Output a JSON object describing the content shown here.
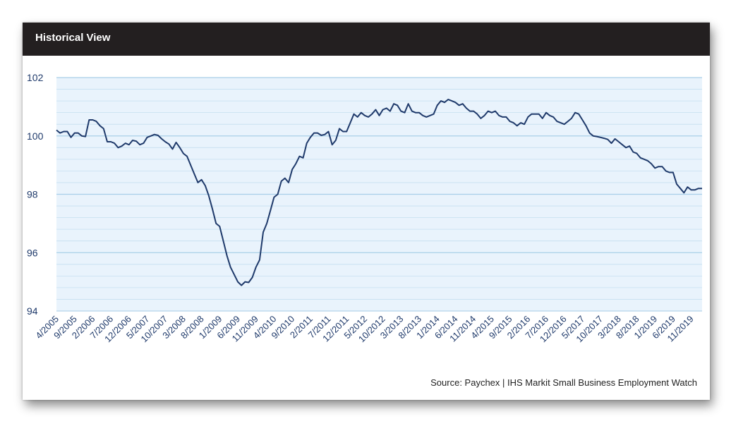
{
  "header": {
    "title": "Historical View"
  },
  "source": "Source: Paychex | IHS Markit Small Business Employment Watch",
  "colors": {
    "header_bg": "#231f20",
    "plot_bg": "#e9f3fc",
    "line": "#1f3a6b",
    "grid": "#c5dff0",
    "axis_text": "#1f3a6b"
  },
  "chart_data": {
    "type": "line",
    "title": "",
    "xlabel": "",
    "ylabel": "",
    "ylim": [
      94,
      102
    ],
    "yticks": [
      94,
      96,
      98,
      100,
      102
    ],
    "grid": true,
    "xtick_labels": [
      "4/2005",
      "9/2005",
      "2/2006",
      "7/2006",
      "12/2006",
      "5/2007",
      "10/2007",
      "3/2008",
      "8/2008",
      "1/2009",
      "6/2009",
      "11/2009",
      "4/2010",
      "9/2010",
      "2/2011",
      "7/2011",
      "12/2011",
      "5/2012",
      "10/2012",
      "3/2013",
      "8/2013",
      "1/2014",
      "6/2014",
      "11/2014",
      "4/2015",
      "9/2015",
      "2/2016",
      "7/2016",
      "12/2016",
      "5/2017",
      "10/2017",
      "3/2018",
      "8/2018",
      "1/2019",
      "6/2019",
      "11/2019"
    ],
    "series": [
      {
        "x_start": "4/2005",
        "x_end": "1/2020",
        "values": [
          100.2,
          100.1,
          100.15,
          100.15,
          99.95,
          100.1,
          100.1,
          100.0,
          99.98,
          100.55,
          100.55,
          100.5,
          100.35,
          100.25,
          99.8,
          99.8,
          99.75,
          99.6,
          99.65,
          99.75,
          99.7,
          99.85,
          99.82,
          99.7,
          99.75,
          99.95,
          100.0,
          100.05,
          100.02,
          99.9,
          99.8,
          99.72,
          99.55,
          99.78,
          99.6,
          99.4,
          99.3,
          99.0,
          98.7,
          98.4,
          98.5,
          98.3,
          97.95,
          97.5,
          97.0,
          96.9,
          96.4,
          95.9,
          95.5,
          95.25,
          95.0,
          94.88,
          95.0,
          94.98,
          95.15,
          95.5,
          95.75,
          96.7,
          97.0,
          97.45,
          97.9,
          98.0,
          98.45,
          98.55,
          98.4,
          98.85,
          99.05,
          99.3,
          99.25,
          99.75,
          99.95,
          100.1,
          100.1,
          100.02,
          100.05,
          100.15,
          99.7,
          99.85,
          100.25,
          100.15,
          100.15,
          100.45,
          100.75,
          100.65,
          100.8,
          100.7,
          100.65,
          100.75,
          100.9,
          100.7,
          100.9,
          100.95,
          100.85,
          101.1,
          101.05,
          100.85,
          100.8,
          101.1,
          100.85,
          100.8,
          100.8,
          100.7,
          100.65,
          100.7,
          100.75,
          101.05,
          101.2,
          101.15,
          101.25,
          101.2,
          101.15,
          101.05,
          101.1,
          100.95,
          100.85,
          100.85,
          100.75,
          100.6,
          100.7,
          100.85,
          100.8,
          100.85,
          100.7,
          100.65,
          100.65,
          100.5,
          100.45,
          100.35,
          100.45,
          100.4,
          100.65,
          100.75,
          100.75,
          100.75,
          100.6,
          100.8,
          100.7,
          100.65,
          100.5,
          100.45,
          100.4,
          100.5,
          100.6,
          100.8,
          100.75,
          100.55,
          100.35,
          100.1,
          100.0,
          99.98,
          99.95,
          99.92,
          99.88,
          99.75,
          99.9,
          99.8,
          99.7,
          99.6,
          99.65,
          99.45,
          99.4,
          99.25,
          99.2,
          99.15,
          99.05,
          98.9,
          98.95,
          98.95,
          98.8,
          98.75,
          98.75,
          98.35,
          98.2,
          98.05,
          98.25,
          98.15,
          98.15,
          98.2,
          98.2
        ]
      }
    ]
  }
}
